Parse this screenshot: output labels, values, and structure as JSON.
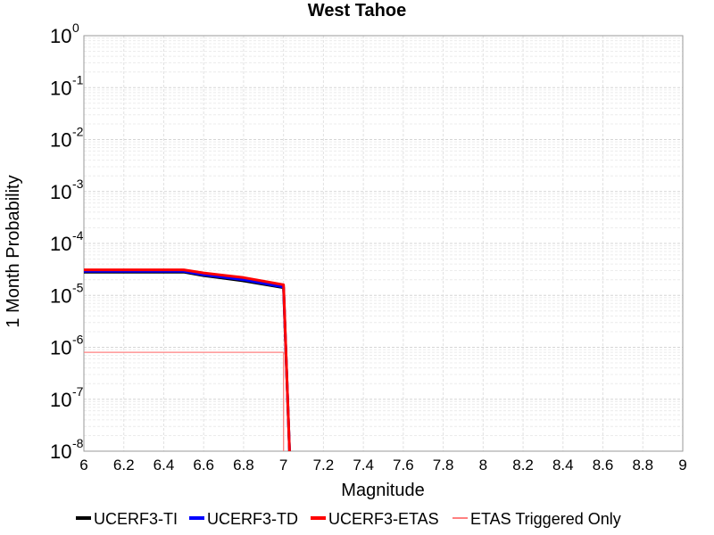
{
  "chart_data": {
    "type": "line",
    "title": "West Tahoe",
    "xlabel": "Magnitude",
    "ylabel": "1 Month Probability",
    "y_scale": "log",
    "xlim": [
      6,
      9
    ],
    "ylim": [
      1e-08,
      1
    ],
    "grid": true,
    "legend_position": "bottom",
    "x_ticks": [
      "6",
      "6.2",
      "6.4",
      "6.6",
      "6.8",
      "7",
      "7.2",
      "7.4",
      "7.6",
      "7.8",
      "8",
      "8.2",
      "8.4",
      "8.6",
      "8.8",
      "9"
    ],
    "y_ticks": [
      {
        "base": "10",
        "exp": "0"
      },
      {
        "base": "10",
        "exp": "-1"
      },
      {
        "base": "10",
        "exp": "-2"
      },
      {
        "base": "10",
        "exp": "-3"
      },
      {
        "base": "10",
        "exp": "-4"
      },
      {
        "base": "10",
        "exp": "-5"
      },
      {
        "base": "10",
        "exp": "-6"
      },
      {
        "base": "10",
        "exp": "-7"
      },
      {
        "base": "10",
        "exp": "-8"
      }
    ],
    "series": [
      {
        "name": "UCERF3-TI",
        "color": "#000000",
        "x": [
          6.0,
          6.5,
          6.6,
          6.8,
          7.0,
          7.03
        ],
        "y": [
          2.8e-05,
          2.8e-05,
          2.4e-05,
          1.9e-05,
          1.4e-05,
          1e-08
        ]
      },
      {
        "name": "UCERF3-TD",
        "color": "#0000ff",
        "x": [
          6.0,
          6.5,
          6.6,
          6.8,
          7.0,
          7.03
        ],
        "y": [
          2.9e-05,
          2.9e-05,
          2.5e-05,
          2e-05,
          1.45e-05,
          1e-08
        ]
      },
      {
        "name": "UCERF3-ETAS",
        "color": "#ff0000",
        "x": [
          6.0,
          6.5,
          6.6,
          6.8,
          7.0,
          7.03
        ],
        "y": [
          3.1e-05,
          3.1e-05,
          2.7e-05,
          2.2e-05,
          1.6e-05,
          1e-08
        ]
      },
      {
        "name": "ETAS Triggered Only",
        "color": "#ff8080",
        "x": [
          6.0,
          7.0,
          7.0
        ],
        "y": [
          8e-07,
          8e-07,
          1e-08
        ]
      }
    ]
  }
}
